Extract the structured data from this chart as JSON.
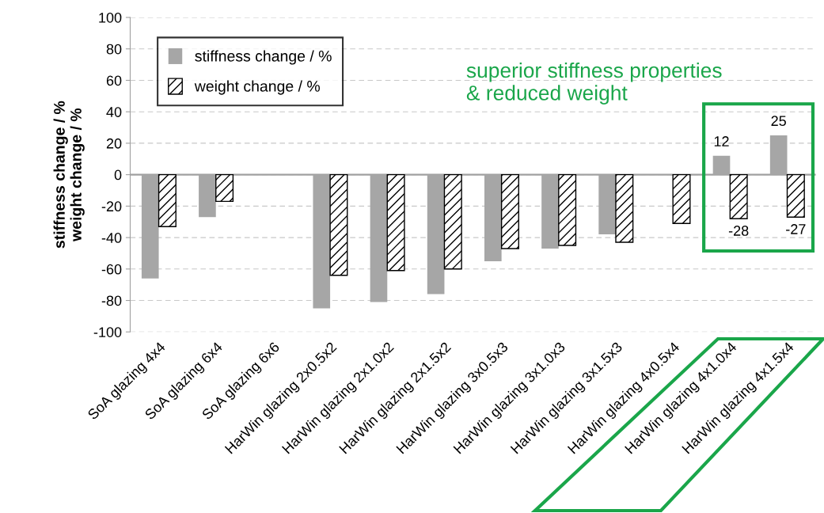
{
  "chart_data": {
    "type": "bar",
    "ylabel": "stiffness change / %\nweight change / %",
    "categories": [
      "SoA glazing 4x4",
      "SoA glazing 6x4",
      "SoA glazing 6x6",
      "HarWin glazing 2x0.5x2",
      "HarWin glazing 2x1.0x2",
      "HarWin glazing 2x1.5x2",
      "HarWin glazing 3x0.5x3",
      "HarWin glazing 3x1.0x3",
      "HarWin glazing 3x1.5x3",
      "HarWin glazing 4x0.5x4",
      "HarWin glazing 4x1.0x4",
      "HarWin glazing 4x1.5x4"
    ],
    "series": [
      {
        "name": "stiffness change / %",
        "color": "#a6a6a6",
        "values": [
          -66,
          -27,
          null,
          -85,
          -81,
          -76,
          -55,
          -47,
          -38,
          0,
          12,
          25
        ],
        "value_labels": [
          null,
          null,
          null,
          null,
          null,
          null,
          null,
          null,
          null,
          null,
          "12",
          "25"
        ]
      },
      {
        "name": "weight change / %",
        "color": "#000000",
        "values": [
          -33,
          -17,
          null,
          -64,
          -61,
          -60,
          -47,
          -45,
          -43,
          -31,
          -28,
          -27
        ],
        "value_labels": [
          null,
          null,
          null,
          null,
          null,
          null,
          null,
          null,
          null,
          null,
          "-28",
          "-27"
        ]
      }
    ],
    "ylim": [
      -100,
      100
    ],
    "yticks": [
      -100,
      -80,
      -60,
      -40,
      -20,
      0,
      20,
      40,
      60,
      80,
      100
    ],
    "grid": "y",
    "legend": "top left",
    "annotations": [
      "superior stiffness properties\n& reduced weight"
    ]
  }
}
